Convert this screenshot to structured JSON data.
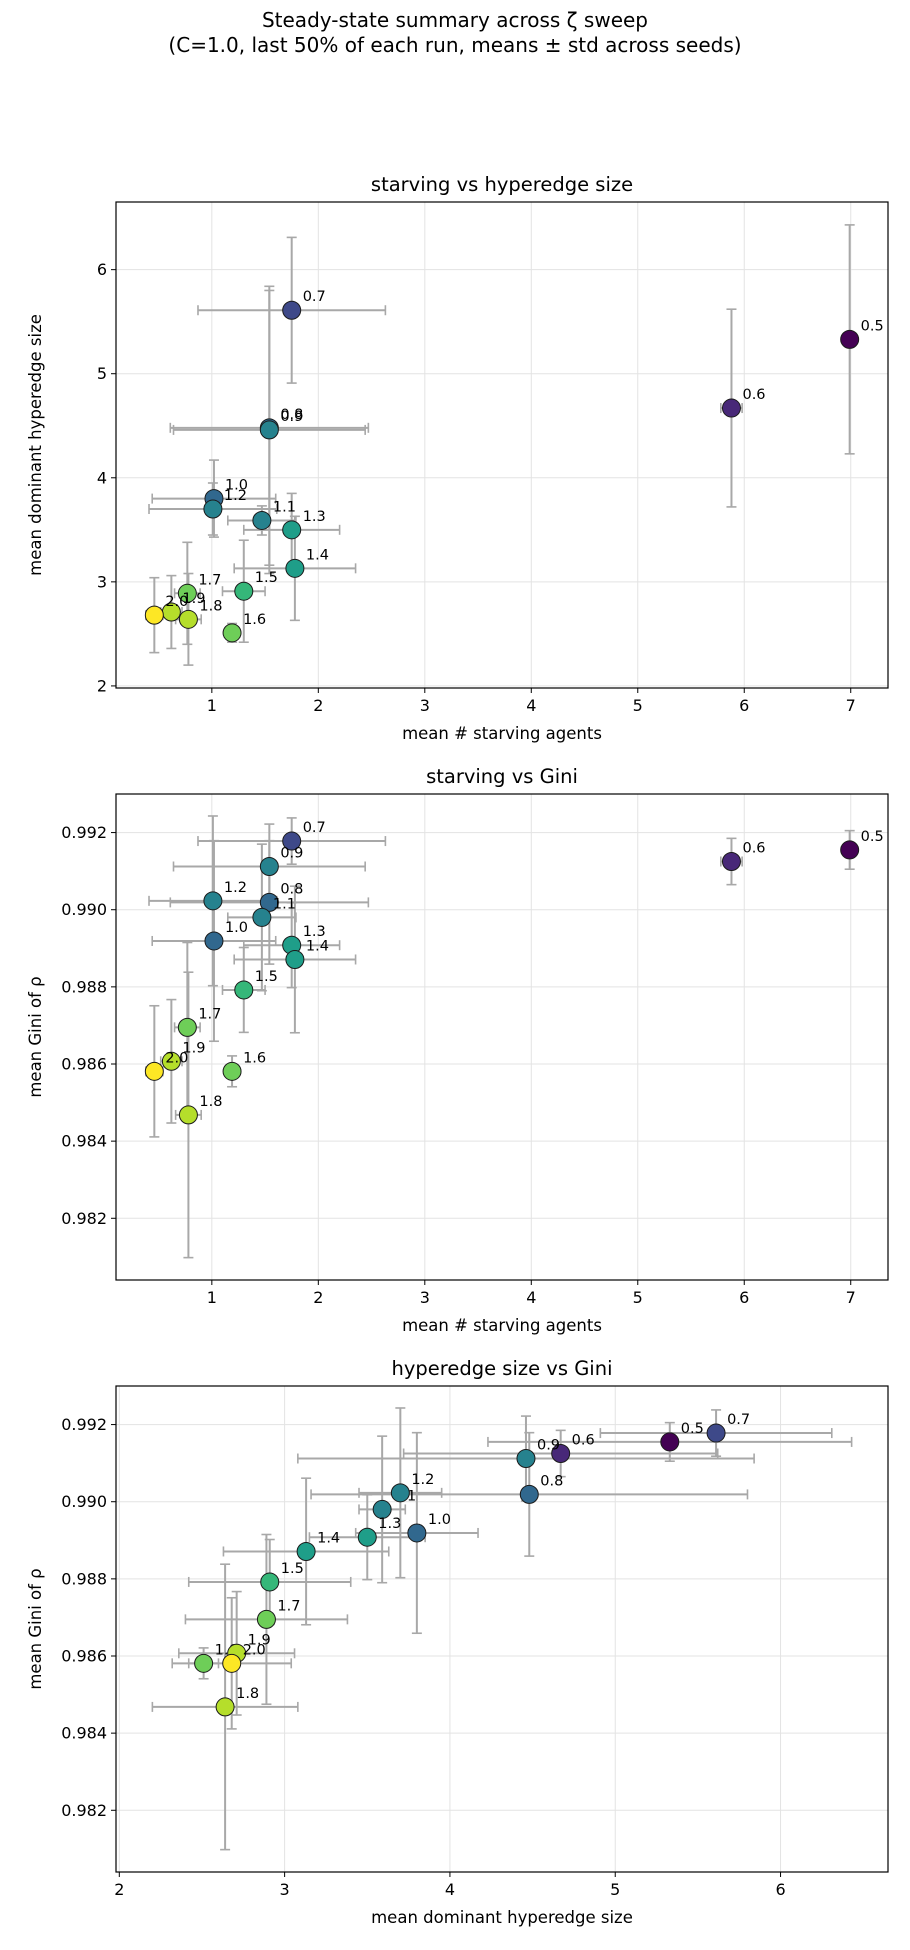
{
  "figure": {
    "suptitle_line1": "Steady-state summary across ζ sweep",
    "suptitle_line2": "(C=1.0, last 50% of each run, means ± std across seeds)"
  },
  "chart_data": [
    {
      "type": "scatter",
      "title": "starving vs hyperedge size",
      "xlabel": "mean # starving agents",
      "ylabel": "mean dominant hyperedge size",
      "xlim": [
        0.1,
        7.35
      ],
      "ylim": [
        1.98,
        6.65
      ],
      "xticks": [
        1,
        2,
        3,
        4,
        5,
        6,
        7
      ],
      "yticks": [
        2,
        3,
        4,
        5,
        6
      ],
      "tick_decimals": 0,
      "grid": true,
      "points": [
        {
          "label": "0.5",
          "x": 6.99,
          "y": 5.33,
          "xerr": 0.0,
          "yerr": 1.1,
          "color": "#440154"
        },
        {
          "label": "0.6",
          "x": 5.88,
          "y": 4.67,
          "xerr": 0.1,
          "yerr": 0.95,
          "color": "#482878"
        },
        {
          "label": "0.7",
          "x": 1.75,
          "y": 5.61,
          "xerr": 0.88,
          "yerr": 0.7,
          "color": "#3e4989"
        },
        {
          "label": "0.8",
          "x": 1.54,
          "y": 4.48,
          "xerr": 0.93,
          "yerr": 1.32,
          "color": "#31688e"
        },
        {
          "label": "0.9",
          "x": 1.54,
          "y": 4.46,
          "xerr": 0.9,
          "yerr": 1.38,
          "color": "#26828e"
        },
        {
          "label": "1.0",
          "x": 1.02,
          "y": 3.8,
          "xerr": 0.58,
          "yerr": 0.37,
          "color": "#31688e"
        },
        {
          "label": "1.1",
          "x": 1.47,
          "y": 3.59,
          "xerr": 0.32,
          "yerr": 0.14,
          "color": "#26828e"
        },
        {
          "label": "1.2",
          "x": 1.01,
          "y": 3.7,
          "xerr": 0.6,
          "yerr": 0.25,
          "color": "#26828e"
        },
        {
          "label": "1.3",
          "x": 1.75,
          "y": 3.5,
          "xerr": 0.45,
          "yerr": 0.35,
          "color": "#1f9e89"
        },
        {
          "label": "1.4",
          "x": 1.78,
          "y": 3.13,
          "xerr": 0.57,
          "yerr": 0.5,
          "color": "#1f9e89"
        },
        {
          "label": "1.5",
          "x": 1.3,
          "y": 2.91,
          "xerr": 0.2,
          "yerr": 0.49,
          "color": "#35b779"
        },
        {
          "label": "1.6",
          "x": 1.19,
          "y": 2.51,
          "xerr": 0.04,
          "yerr": 0.09,
          "color": "#6ece58"
        },
        {
          "label": "1.7",
          "x": 0.77,
          "y": 2.89,
          "xerr": 0.12,
          "yerr": 0.49,
          "color": "#6ece58"
        },
        {
          "label": "1.8",
          "x": 0.78,
          "y": 2.64,
          "xerr": 0.12,
          "yerr": 0.44,
          "color": "#b5de2b"
        },
        {
          "label": "1.9",
          "x": 0.62,
          "y": 2.71,
          "xerr": 0.1,
          "yerr": 0.35,
          "color": "#b5de2b"
        },
        {
          "label": "2.0",
          "x": 0.46,
          "y": 2.68,
          "xerr": 0.08,
          "yerr": 0.36,
          "color": "#fde725"
        }
      ]
    },
    {
      "type": "scatter",
      "title": "starving vs Gini",
      "xlabel": "mean # starving agents",
      "ylabel": "mean Gini of ρ",
      "xlim": [
        0.1,
        7.35
      ],
      "ylim": [
        0.9804,
        0.993
      ],
      "xticks": [
        1,
        2,
        3,
        4,
        5,
        6,
        7
      ],
      "yticks": [
        0.982,
        0.984,
        0.986,
        0.988,
        0.99,
        0.992
      ],
      "tick_decimals": 3,
      "grid": true,
      "points": [
        {
          "label": "0.5",
          "x": 6.99,
          "y": 0.99155,
          "xerr": 0.0,
          "yerr": 0.0005,
          "color": "#440154"
        },
        {
          "label": "0.6",
          "x": 5.88,
          "y": 0.99125,
          "xerr": 0.1,
          "yerr": 0.0006,
          "color": "#482878"
        },
        {
          "label": "0.7",
          "x": 1.75,
          "y": 0.99178,
          "xerr": 0.88,
          "yerr": 0.0006,
          "color": "#3e4989"
        },
        {
          "label": "0.8",
          "x": 1.54,
          "y": 0.99019,
          "xerr": 0.93,
          "yerr": 0.0016,
          "color": "#31688e"
        },
        {
          "label": "0.9",
          "x": 1.54,
          "y": 0.99112,
          "xerr": 0.9,
          "yerr": 0.0011,
          "color": "#26828e"
        },
        {
          "label": "1.0",
          "x": 1.02,
          "y": 0.98919,
          "xerr": 0.58,
          "yerr": 0.0026,
          "color": "#31688e"
        },
        {
          "label": "1.1",
          "x": 1.47,
          "y": 0.9898,
          "xerr": 0.32,
          "yerr": 0.0019,
          "color": "#26828e"
        },
        {
          "label": "1.2",
          "x": 1.01,
          "y": 0.99023,
          "xerr": 0.6,
          "yerr": 0.0022,
          "color": "#26828e"
        },
        {
          "label": "1.3",
          "x": 1.75,
          "y": 0.98908,
          "xerr": 0.45,
          "yerr": 0.0011,
          "color": "#1f9e89"
        },
        {
          "label": "1.4",
          "x": 1.78,
          "y": 0.98871,
          "xerr": 0.57,
          "yerr": 0.0019,
          "color": "#1f9e89"
        },
        {
          "label": "1.5",
          "x": 1.3,
          "y": 0.98792,
          "xerr": 0.2,
          "yerr": 0.0011,
          "color": "#35b779"
        },
        {
          "label": "1.6",
          "x": 1.19,
          "y": 0.98581,
          "xerr": 0.04,
          "yerr": 0.0004,
          "color": "#6ece58"
        },
        {
          "label": "1.7",
          "x": 0.77,
          "y": 0.98695,
          "xerr": 0.12,
          "yerr": 0.0022,
          "color": "#6ece58"
        },
        {
          "label": "1.8",
          "x": 0.78,
          "y": 0.98468,
          "xerr": 0.12,
          "yerr": 0.0037,
          "color": "#b5de2b"
        },
        {
          "label": "1.9",
          "x": 0.62,
          "y": 0.98607,
          "xerr": 0.1,
          "yerr": 0.0016,
          "color": "#b5de2b"
        },
        {
          "label": "2.0",
          "x": 0.46,
          "y": 0.98581,
          "xerr": 0.08,
          "yerr": 0.0017,
          "color": "#fde725"
        }
      ]
    },
    {
      "type": "scatter",
      "title": "hyperedge size vs Gini",
      "xlabel": "mean dominant hyperedge size",
      "ylabel": "mean Gini of ρ",
      "xlim": [
        1.98,
        6.65
      ],
      "ylim": [
        0.9804,
        0.993
      ],
      "xticks": [
        2,
        3,
        4,
        5,
        6
      ],
      "yticks": [
        0.982,
        0.984,
        0.986,
        0.988,
        0.99,
        0.992
      ],
      "tick_decimals": 3,
      "grid": true,
      "points": [
        {
          "label": "0.5",
          "x": 5.33,
          "y": 0.99155,
          "xerr": 1.1,
          "yerr": 0.0005,
          "color": "#440154"
        },
        {
          "label": "0.6",
          "x": 4.67,
          "y": 0.99125,
          "xerr": 0.95,
          "yerr": 0.0006,
          "color": "#482878"
        },
        {
          "label": "0.7",
          "x": 5.61,
          "y": 0.99178,
          "xerr": 0.7,
          "yerr": 0.0006,
          "color": "#3e4989"
        },
        {
          "label": "0.8",
          "x": 4.48,
          "y": 0.99019,
          "xerr": 1.32,
          "yerr": 0.0016,
          "color": "#31688e"
        },
        {
          "label": "0.9",
          "x": 4.46,
          "y": 0.99112,
          "xerr": 1.38,
          "yerr": 0.0011,
          "color": "#26828e"
        },
        {
          "label": "1.0",
          "x": 3.8,
          "y": 0.98919,
          "xerr": 0.37,
          "yerr": 0.0026,
          "color": "#31688e"
        },
        {
          "label": "1.1",
          "x": 3.59,
          "y": 0.9898,
          "xerr": 0.14,
          "yerr": 0.0019,
          "color": "#26828e"
        },
        {
          "label": "1.2",
          "x": 3.7,
          "y": 0.99023,
          "xerr": 0.25,
          "yerr": 0.0022,
          "color": "#26828e"
        },
        {
          "label": "1.3",
          "x": 3.5,
          "y": 0.98908,
          "xerr": 0.35,
          "yerr": 0.0011,
          "color": "#1f9e89"
        },
        {
          "label": "1.4",
          "x": 3.13,
          "y": 0.98871,
          "xerr": 0.5,
          "yerr": 0.0019,
          "color": "#1f9e89"
        },
        {
          "label": "1.5",
          "x": 2.91,
          "y": 0.98792,
          "xerr": 0.49,
          "yerr": 0.0011,
          "color": "#35b779"
        },
        {
          "label": "1.6",
          "x": 2.51,
          "y": 0.98581,
          "xerr": 0.09,
          "yerr": 0.0004,
          "color": "#6ece58"
        },
        {
          "label": "1.7",
          "x": 2.89,
          "y": 0.98695,
          "xerr": 0.49,
          "yerr": 0.0022,
          "color": "#6ece58"
        },
        {
          "label": "1.8",
          "x": 2.64,
          "y": 0.98468,
          "xerr": 0.44,
          "yerr": 0.0037,
          "color": "#b5de2b"
        },
        {
          "label": "1.9",
          "x": 2.71,
          "y": 0.98607,
          "xerr": 0.35,
          "yerr": 0.0016,
          "color": "#b5de2b"
        },
        {
          "label": "2.0",
          "x": 2.68,
          "y": 0.98581,
          "xerr": 0.36,
          "yerr": 0.0017,
          "color": "#fde725"
        }
      ]
    }
  ]
}
